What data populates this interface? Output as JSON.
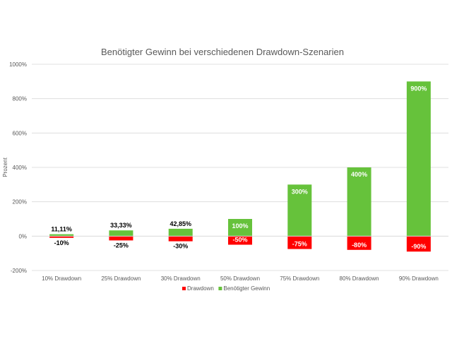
{
  "chart_data": {
    "type": "bar",
    "title": "Benötigter Gewinn bei verschiedenen Drawdown-Szenarien",
    "ylabel": "Prozent",
    "xlabel": "",
    "categories": [
      "10% Drawdown",
      "25% Drawdown",
      "30% Drawdown",
      "50% Drawdown",
      "75% Drawdown",
      "80% Drawdown",
      "90% Drawdown"
    ],
    "series": [
      {
        "name": "Drawdown",
        "color": "#ff0000",
        "values": [
          -10,
          -25,
          -30,
          -50,
          -75,
          -80,
          -90
        ],
        "labels": [
          "-10%",
          "-25%",
          "-30%",
          "-50%",
          "-75%",
          "-80%",
          "-90%"
        ]
      },
      {
        "name": "Benötigter Gewinn",
        "color": "#66c23b",
        "values": [
          11.11,
          33.33,
          42.85,
          100,
          300,
          400,
          900
        ],
        "labels": [
          "11,11%",
          "33,33%",
          "42,85%",
          "100%",
          "300%",
          "400%",
          "900%"
        ]
      }
    ],
    "ylim": [
      -200,
      1000
    ],
    "yticks": [
      -200,
      0,
      200,
      400,
      600,
      800,
      1000
    ],
    "ytick_labels": [
      "-200%",
      "0%",
      "200%",
      "400%",
      "600%",
      "800%",
      "1000%"
    ],
    "grid": true,
    "legend_position": "bottom"
  }
}
